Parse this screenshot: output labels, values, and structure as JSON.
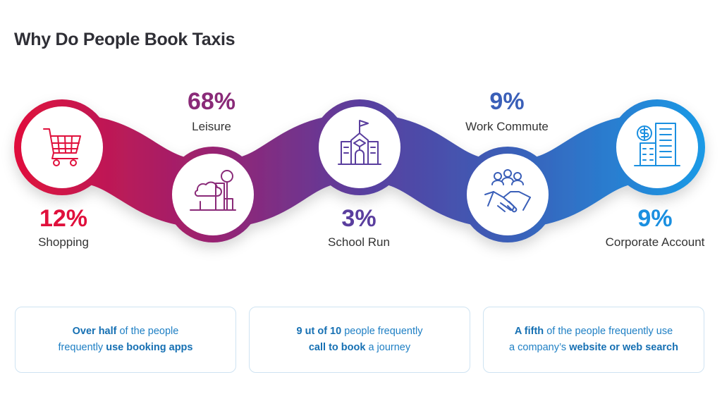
{
  "title": "Why Do People Book Taxis",
  "chart_data": {
    "type": "infographic",
    "title": "Why Do People Book Taxis",
    "categories": [
      "Shopping",
      "Leisure",
      "School Run",
      "Work Commute",
      "Corporate Account"
    ],
    "values": [
      12,
      68,
      3,
      9,
      9
    ],
    "value_labels": [
      "12%",
      "68%",
      "3%",
      "9%",
      "9%"
    ],
    "icons": [
      "shopping-cart-icon",
      "tree-bench-icon",
      "school-icon",
      "handshake-icon",
      "building-dollar-icon"
    ],
    "colors": [
      "#e0103c",
      "#8a2a78",
      "#5a3e9e",
      "#3a5fb8",
      "#1a8fe0"
    ]
  },
  "cards": [
    {
      "line1": [
        {
          "t": "Over half",
          "b": true
        },
        {
          "t": " of the people",
          "b": false
        }
      ],
      "line2": [
        {
          "t": "frequently ",
          "b": false
        },
        {
          "t": "use booking apps",
          "b": true
        }
      ]
    },
    {
      "line1": [
        {
          "t": "9 ut of 10",
          "b": true
        },
        {
          "t": " people frequently",
          "b": false
        }
      ],
      "line2": [
        {
          "t": "call to book",
          "b": true
        },
        {
          "t": " a journey",
          "b": false
        }
      ]
    },
    {
      "line1": [
        {
          "t": "A fifth",
          "b": true
        },
        {
          "t": " of the people frequently use",
          "b": false
        }
      ],
      "line2": [
        {
          "t": "a company’s ",
          "b": false
        },
        {
          "t": "website or web search",
          "b": true
        }
      ]
    }
  ]
}
